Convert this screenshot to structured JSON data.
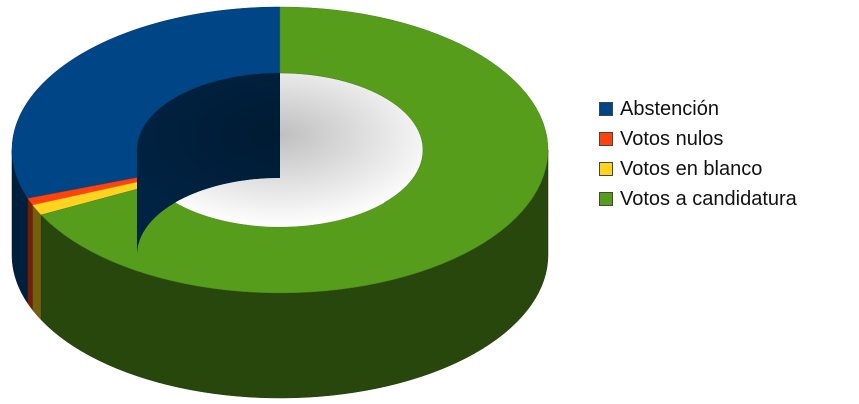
{
  "chart_data": {
    "type": "pie",
    "style": "3d-donut",
    "title": "",
    "legend_position": "right",
    "categories": [
      "Abstención",
      "Votos nulos",
      "Votos en blanco",
      "Votos a candidatura"
    ],
    "values": [
      30.5,
      0.8,
      1.2,
      67.5
    ],
    "colors": [
      "#004586",
      "#ff420e",
      "#ffd320",
      "#579d1c"
    ]
  }
}
